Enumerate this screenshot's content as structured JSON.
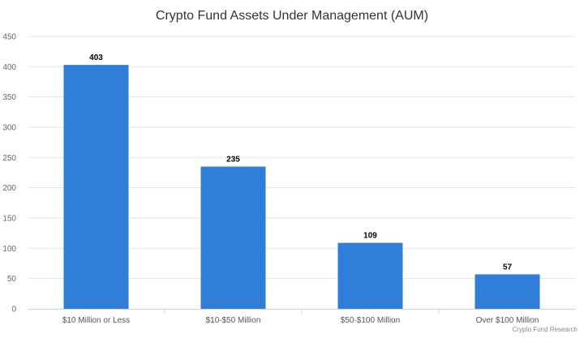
{
  "chart_data": {
    "type": "bar",
    "title": "Crypto Fund Assets Under Management (AUM)",
    "categories": [
      "$10 Million or Less",
      "$10-$50 Million",
      "$50-$100 Million",
      "Over $100 Million"
    ],
    "values": [
      403,
      235,
      109,
      57
    ],
    "data_labels": [
      "403",
      "235",
      "109",
      "57"
    ],
    "yticks": [
      "0",
      "50",
      "100",
      "150",
      "200",
      "250",
      "300",
      "350",
      "400",
      "450"
    ],
    "ylim": [
      0,
      450
    ],
    "xlabel": "",
    "ylabel": "",
    "grid": true,
    "bar_color": "#2f7ed8"
  },
  "credit": "Crypto Fund Research"
}
